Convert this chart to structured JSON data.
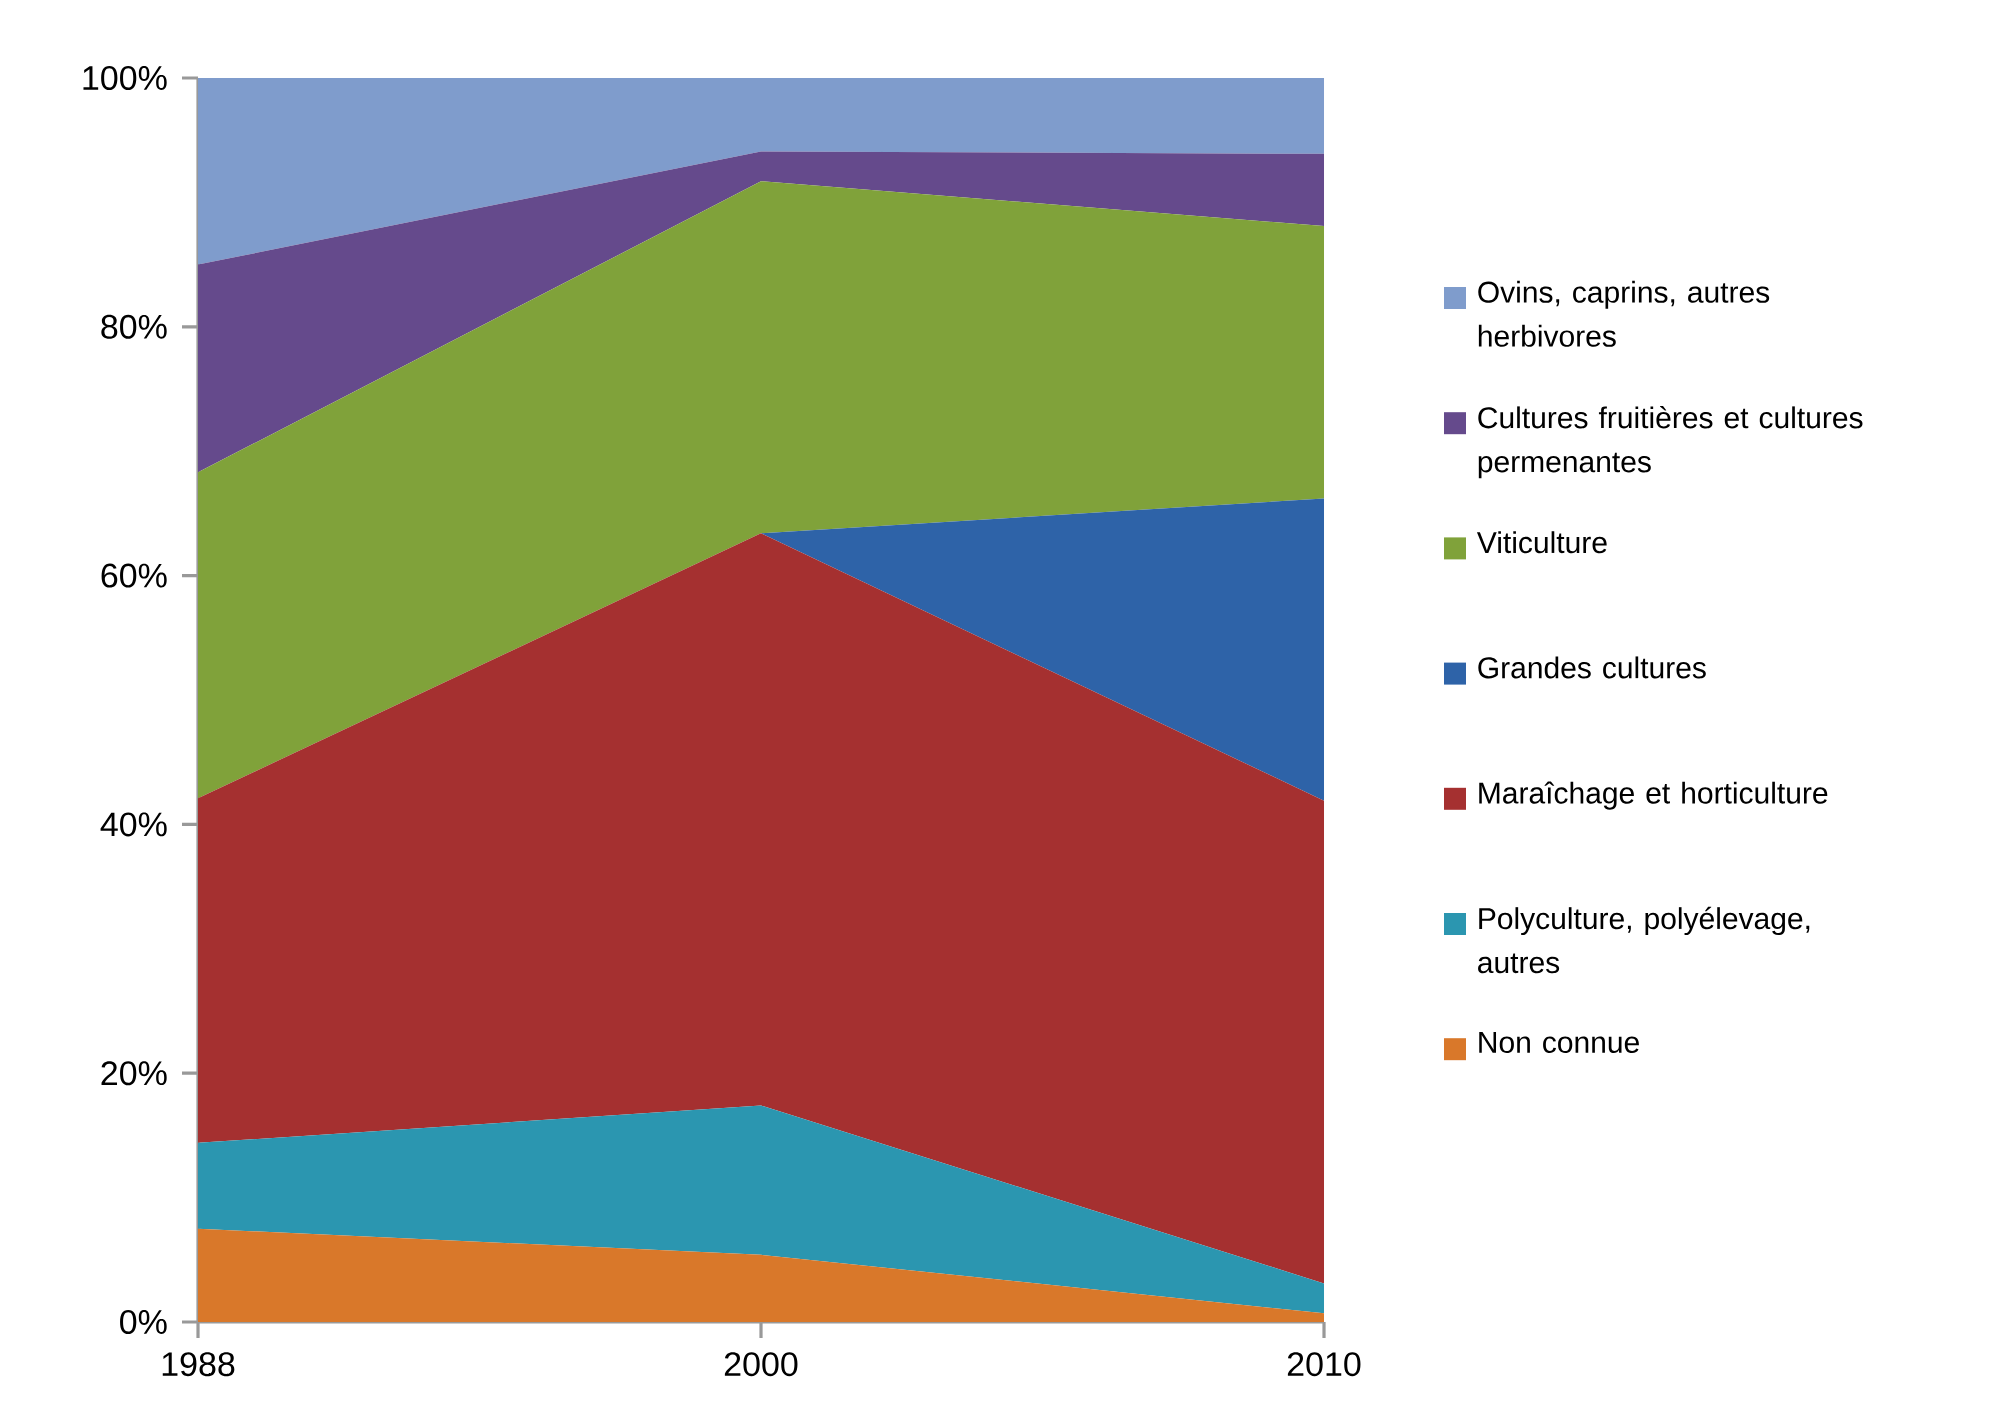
{
  "chart_data": {
    "type": "area",
    "stacked": true,
    "categories": [
      "1988",
      "2000",
      "2010"
    ],
    "series": [
      {
        "name": "Non connue",
        "color": "#d9782a",
        "values": [
          7.5,
          5.4,
          0.7
        ]
      },
      {
        "name": "Polyculture, polyélevage, autres",
        "color": "#2b96b0",
        "values": [
          6.9,
          12.0,
          2.4
        ]
      },
      {
        "name": "Maraîchage et horticulture",
        "color": "#a53030",
        "values": [
          27.7,
          46.0,
          38.8
        ]
      },
      {
        "name": "Grandes cultures",
        "color": "#2e63a8",
        "values": [
          0,
          0,
          24.3
        ]
      },
      {
        "name": "Viticulture",
        "color": "#80a23a",
        "values": [
          26.2,
          28.3,
          21.9
        ]
      },
      {
        "name": "Cultures fruitières et cultures permenantes",
        "color": "#654a8c",
        "values": [
          16.7,
          2.4,
          5.8
        ]
      },
      {
        "name": "Ovins, caprins, autres herbivores",
        "color": "#7f9ccc",
        "values": [
          15.0,
          5.9,
          6.1
        ]
      }
    ],
    "ylim": [
      0,
      100
    ],
    "yticks": [
      {
        "value": 0,
        "label": "0%"
      },
      {
        "value": 20,
        "label": "20%"
      },
      {
        "value": 40,
        "label": "40%"
      },
      {
        "value": 60,
        "label": "60%"
      },
      {
        "value": 80,
        "label": "80%"
      },
      {
        "value": 100,
        "label": "100%"
      }
    ],
    "legend": "right"
  }
}
